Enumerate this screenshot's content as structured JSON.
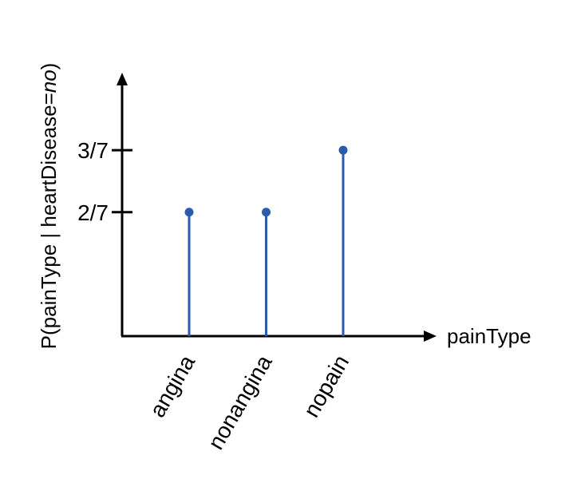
{
  "chart_data": {
    "type": "stem",
    "categories": [
      "angina",
      "nonangina",
      "nopain"
    ],
    "values": [
      0.2857142857,
      0.2857142857,
      0.4285714286
    ],
    "value_labels": [
      "2/7",
      "2/7",
      "3/7"
    ],
    "y_ticks": [
      {
        "value": 0.2857142857,
        "label": "2/7"
      },
      {
        "value": 0.4285714286,
        "label": "3/7"
      }
    ],
    "ylim": [
      0,
      0.6
    ],
    "xlabel": "painType",
    "ylabel": {
      "prefix": "P(painType | heartDisease=",
      "italic": "no",
      "suffix": ")"
    },
    "grid": false,
    "legend": "none",
    "colors": {
      "stem": "#2c5aad",
      "axis": "#000000"
    }
  }
}
